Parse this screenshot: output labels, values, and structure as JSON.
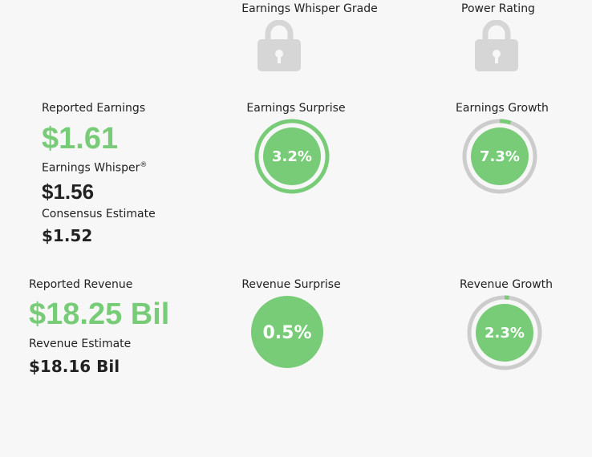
{
  "top": {
    "whisper_grade_label": "Earnings Whisper Grade",
    "power_rating_label": "Power Rating"
  },
  "earnings": {
    "reported_label": "Reported Earnings",
    "reported_value": "$1.61",
    "whisper_label": "Earnings Whisper",
    "whisper_mark": "®",
    "whisper_value": "$1.56",
    "consensus_label": "Consensus Estimate",
    "consensus_value": "$1.52",
    "surprise_label": "Earnings Surprise",
    "surprise_value": "3.2%",
    "surprise_fill": 1.0,
    "growth_label": "Earnings Growth",
    "growth_value": "7.3%",
    "growth_fill": 0.05
  },
  "revenue": {
    "reported_label": "Reported Revenue",
    "reported_value": "$18.25 Bil",
    "estimate_label": "Revenue Estimate",
    "estimate_value": "$18.16 Bil",
    "surprise_label": "Revenue Surprise",
    "surprise_value": "0.5%",
    "growth_label": "Revenue Growth",
    "growth_value": "2.3%",
    "growth_fill": 0.02
  },
  "colors": {
    "green": "#78cc78",
    "gray_ring": "#cccccc",
    "lock": "#d6d6d6",
    "background": "#f7f7f7"
  },
  "icons": {
    "lock": "lock-icon"
  }
}
